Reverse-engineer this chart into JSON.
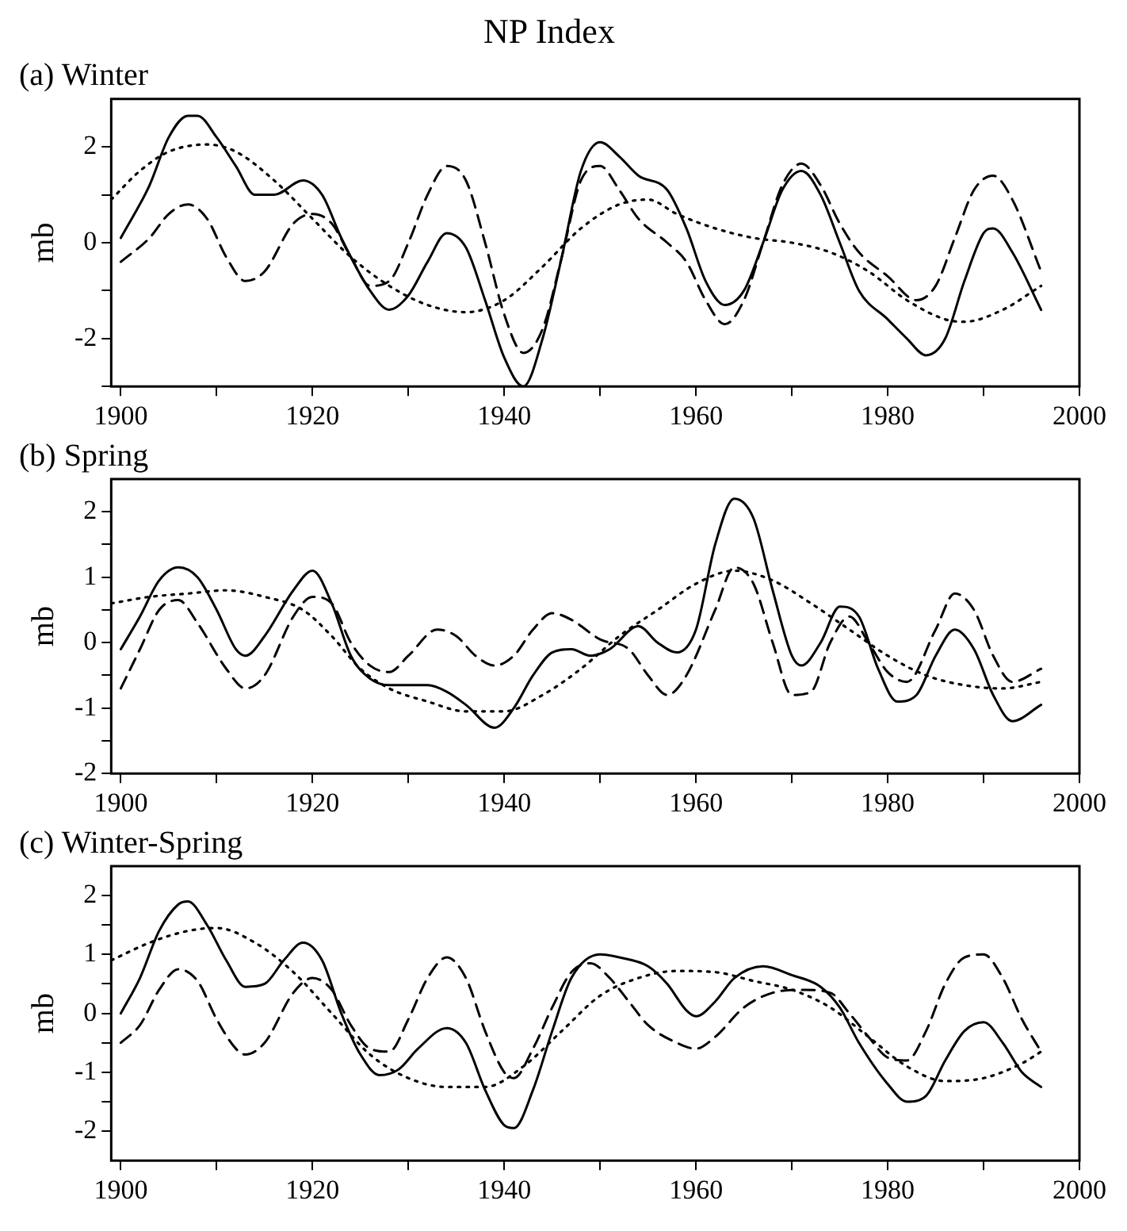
{
  "chart_data": [
    {
      "type": "line",
      "title": "NP Index",
      "subtitle": "(a) Winter",
      "ylabel": "mb",
      "xlim": [
        1899,
        2000
      ],
      "ylim": [
        -3,
        3
      ],
      "grid": false,
      "legend": false,
      "marker": "none",
      "xticks": [
        1900,
        {
          "value": 1910,
          "label": null
        },
        1920,
        {
          "value": 1930,
          "label": null
        },
        1940,
        {
          "value": 1950,
          "label": null
        },
        1960,
        {
          "value": 1970,
          "label": null
        },
        1980,
        {
          "value": 1990,
          "label": null
        },
        2000
      ],
      "yticks": [
        {
          "value": -3,
          "label": null
        },
        -2,
        {
          "value": -1,
          "label": null
        },
        0,
        {
          "value": 1,
          "label": null
        },
        2
      ],
      "series": [
        {
          "color": "#000000",
          "line_style": "solid",
          "x": [
            1900,
            1903,
            1905,
            1907,
            1908,
            1910,
            1912,
            1914,
            1916,
            1919,
            1921,
            1923,
            1926,
            1928,
            1930,
            1932,
            1934,
            1936,
            1938,
            1940,
            1942,
            1944,
            1946,
            1948,
            1950,
            1952,
            1954,
            1957,
            1959,
            1961,
            1963,
            1965,
            1967,
            1969,
            1971,
            1973,
            1975,
            1977,
            1980,
            1982,
            1984,
            1986,
            1988,
            1990,
            1991,
            1993,
            1996
          ],
          "values": [
            0.1,
            1.2,
            2.2,
            2.65,
            2.65,
            2.2,
            1.6,
            1.0,
            1.0,
            1.3,
            1.0,
            0.1,
            -1.0,
            -1.4,
            -1.1,
            -0.4,
            0.2,
            -0.1,
            -1.2,
            -2.4,
            -3.0,
            -2.0,
            -0.3,
            1.5,
            2.1,
            1.8,
            1.4,
            1.1,
            0.3,
            -0.8,
            -1.3,
            -1.0,
            0.0,
            1.1,
            1.5,
            1.0,
            0.0,
            -1.0,
            -1.6,
            -2.0,
            -2.35,
            -2.0,
            -0.8,
            0.2,
            0.3,
            -0.2,
            -1.4
          ]
        },
        {
          "color": "#000000",
          "line_style": "dashed",
          "x": [
            1900,
            1903,
            1905,
            1907,
            1909,
            1911,
            1913,
            1915,
            1918,
            1920,
            1922,
            1924,
            1926,
            1928,
            1930,
            1932,
            1934,
            1936,
            1938,
            1940,
            1942,
            1944,
            1946,
            1948,
            1950,
            1952,
            1954,
            1957,
            1959,
            1961,
            1963,
            1965,
            1967,
            1969,
            1971,
            1973,
            1975,
            1977,
            1980,
            1983,
            1985,
            1987,
            1989,
            1991,
            1993,
            1996
          ],
          "values": [
            -0.4,
            0.1,
            0.6,
            0.8,
            0.5,
            -0.3,
            -0.8,
            -0.6,
            0.4,
            0.6,
            0.4,
            -0.3,
            -0.9,
            -0.8,
            0.0,
            1.0,
            1.6,
            1.3,
            0.0,
            -1.5,
            -2.3,
            -1.8,
            -0.3,
            1.3,
            1.6,
            1.1,
            0.5,
            0.0,
            -0.4,
            -1.2,
            -1.7,
            -1.2,
            0.0,
            1.2,
            1.65,
            1.2,
            0.4,
            -0.2,
            -0.7,
            -1.2,
            -0.9,
            0.1,
            1.1,
            1.4,
            0.9,
            -0.6
          ]
        },
        {
          "color": "#000000",
          "line_style": "dotted",
          "x": [
            1899,
            1902,
            1905,
            1909,
            1912,
            1916,
            1920,
            1924,
            1928,
            1932,
            1936,
            1940,
            1944,
            1948,
            1952,
            1955,
            1958,
            1962,
            1966,
            1970,
            1974,
            1978,
            1982,
            1986,
            1988,
            1992,
            1996
          ],
          "values": [
            0.9,
            1.5,
            1.9,
            2.05,
            1.9,
            1.3,
            0.5,
            -0.3,
            -0.9,
            -1.3,
            -1.45,
            -1.2,
            -0.5,
            0.3,
            0.8,
            0.9,
            0.6,
            0.3,
            0.1,
            0.0,
            -0.2,
            -0.6,
            -1.2,
            -1.6,
            -1.65,
            -1.4,
            -0.9
          ]
        }
      ]
    },
    {
      "type": "line",
      "subtitle": "(b) Spring",
      "ylabel": "mb",
      "xlim": [
        1899,
        2000
      ],
      "ylim": [
        -2,
        2.5
      ],
      "grid": false,
      "legend": false,
      "marker": "none",
      "xticks": [
        1900,
        {
          "value": 1910,
          "label": null
        },
        1920,
        {
          "value": 1930,
          "label": null
        },
        1940,
        {
          "value": 1950,
          "label": null
        },
        1960,
        {
          "value": 1970,
          "label": null
        },
        1980,
        {
          "value": 1990,
          "label": null
        },
        2000
      ],
      "yticks": [
        -2,
        {
          "value": -1.5,
          "label": null
        },
        -1,
        {
          "value": -0.5,
          "label": null
        },
        0,
        {
          "value": 0.5,
          "label": null
        },
        1,
        {
          "value": 1.5,
          "label": null
        },
        2
      ],
      "series": [
        {
          "color": "#000000",
          "line_style": "solid",
          "x": [
            1900,
            1902,
            1904,
            1906,
            1908,
            1910,
            1912,
            1913,
            1915,
            1918,
            1920,
            1922,
            1924,
            1926,
            1928,
            1932,
            1934,
            1936,
            1939,
            1941,
            1943,
            1945,
            1947,
            1949,
            1951,
            1954,
            1956,
            1958,
            1960,
            1962,
            1964,
            1966,
            1968,
            1970,
            1971,
            1973,
            1975,
            1977,
            1979,
            1981,
            1983,
            1985,
            1987,
            1989,
            1991,
            1993,
            1996
          ],
          "values": [
            -0.1,
            0.4,
            0.95,
            1.15,
            1.0,
            0.5,
            -0.1,
            -0.2,
            0.1,
            0.8,
            1.1,
            0.6,
            -0.2,
            -0.55,
            -0.65,
            -0.65,
            -0.75,
            -0.95,
            -1.3,
            -1.0,
            -0.5,
            -0.15,
            -0.1,
            -0.2,
            -0.1,
            0.25,
            0.0,
            -0.15,
            0.2,
            1.5,
            2.2,
            1.9,
            0.8,
            -0.2,
            -0.35,
            0.0,
            0.55,
            0.4,
            -0.4,
            -0.9,
            -0.8,
            -0.2,
            0.2,
            -0.1,
            -0.8,
            -1.2,
            -0.95
          ]
        },
        {
          "color": "#000000",
          "line_style": "dashed",
          "x": [
            1900,
            1902,
            1904,
            1906,
            1908,
            1911,
            1913,
            1915,
            1918,
            1920,
            1922,
            1924,
            1926,
            1928,
            1930,
            1933,
            1935,
            1937,
            1939,
            1941,
            1943,
            1945,
            1947,
            1950,
            1953,
            1955,
            1957,
            1959,
            1962,
            1964,
            1966,
            1968,
            1970,
            1972,
            1974,
            1976,
            1978,
            1980,
            1982,
            1985,
            1987,
            1989,
            1991,
            1993,
            1996
          ],
          "values": [
            -0.7,
            -0.1,
            0.5,
            0.65,
            0.3,
            -0.4,
            -0.7,
            -0.5,
            0.4,
            0.7,
            0.6,
            0.0,
            -0.35,
            -0.45,
            -0.2,
            0.2,
            0.1,
            -0.2,
            -0.35,
            -0.2,
            0.2,
            0.45,
            0.35,
            0.05,
            -0.1,
            -0.5,
            -0.8,
            -0.5,
            0.5,
            1.15,
            0.9,
            0.0,
            -0.8,
            -0.75,
            0.0,
            0.4,
            0.0,
            -0.45,
            -0.6,
            0.2,
            0.75,
            0.5,
            -0.2,
            -0.6,
            -0.4
          ]
        },
        {
          "color": "#000000",
          "line_style": "dotted",
          "x": [
            1899,
            1903,
            1907,
            1911,
            1915,
            1919,
            1922,
            1925,
            1928,
            1932,
            1936,
            1940,
            1944,
            1948,
            1952,
            1956,
            1960,
            1964,
            1968,
            1972,
            1976,
            1980,
            1984,
            1988,
            1992,
            1996
          ],
          "values": [
            0.6,
            0.7,
            0.75,
            0.8,
            0.7,
            0.5,
            0.1,
            -0.4,
            -0.7,
            -0.9,
            -1.05,
            -1.05,
            -0.8,
            -0.4,
            0.1,
            0.5,
            0.9,
            1.1,
            0.95,
            0.6,
            0.2,
            -0.2,
            -0.5,
            -0.65,
            -0.7,
            -0.6
          ]
        }
      ]
    },
    {
      "type": "line",
      "subtitle": "(c) Winter-Spring",
      "ylabel": "mb",
      "xlim": [
        1899,
        2000
      ],
      "ylim": [
        -2.5,
        2.5
      ],
      "grid": false,
      "legend": false,
      "marker": "none",
      "xticks": [
        1900,
        {
          "value": 1910,
          "label": null
        },
        1920,
        {
          "value": 1930,
          "label": null
        },
        1940,
        {
          "value": 1950,
          "label": null
        },
        1960,
        {
          "value": 1970,
          "label": null
        },
        1980,
        {
          "value": 1990,
          "label": null
        },
        2000
      ],
      "yticks": [
        -2,
        {
          "value": -1.5,
          "label": null
        },
        -1,
        {
          "value": -0.5,
          "label": null
        },
        0,
        {
          "value": 0.5,
          "label": null
        },
        1,
        {
          "value": 1.5,
          "label": null
        },
        2
      ],
      "series": [
        {
          "color": "#000000",
          "line_style": "solid",
          "x": [
            1900,
            1902,
            1904,
            1906,
            1907,
            1909,
            1911,
            1913,
            1915,
            1917,
            1919,
            1921,
            1923,
            1925,
            1927,
            1929,
            1931,
            1934,
            1936,
            1938,
            1940,
            1941,
            1943,
            1945,
            1947,
            1950,
            1952,
            1955,
            1957,
            1959,
            1960,
            1962,
            1964,
            1967,
            1970,
            1973,
            1975,
            1977,
            1980,
            1982,
            1984,
            1986,
            1988,
            1990,
            1992,
            1994,
            1996
          ],
          "values": [
            0.0,
            0.6,
            1.4,
            1.85,
            1.9,
            1.5,
            0.9,
            0.45,
            0.5,
            0.9,
            1.2,
            0.9,
            0.0,
            -0.7,
            -1.05,
            -0.95,
            -0.6,
            -0.25,
            -0.5,
            -1.3,
            -1.9,
            -1.95,
            -1.3,
            -0.3,
            0.6,
            1.0,
            0.95,
            0.8,
            0.5,
            0.05,
            -0.05,
            0.2,
            0.6,
            0.8,
            0.65,
            0.45,
            0.1,
            -0.5,
            -1.2,
            -1.5,
            -1.4,
            -0.8,
            -0.3,
            -0.15,
            -0.5,
            -1.0,
            -1.25
          ]
        },
        {
          "color": "#000000",
          "line_style": "dashed",
          "x": [
            1900,
            1902,
            1904,
            1906,
            1908,
            1910,
            1912,
            1913,
            1915,
            1918,
            1920,
            1922,
            1924,
            1926,
            1928,
            1930,
            1932,
            1934,
            1936,
            1938,
            1940,
            1941,
            1943,
            1945,
            1947,
            1949,
            1951,
            1953,
            1955,
            1958,
            1960,
            1962,
            1965,
            1968,
            1971,
            1974,
            1976,
            1978,
            1980,
            1982,
            1984,
            1986,
            1988,
            1990,
            1992,
            1994,
            1996
          ],
          "values": [
            -0.5,
            -0.2,
            0.4,
            0.75,
            0.55,
            -0.1,
            -0.6,
            -0.7,
            -0.5,
            0.35,
            0.6,
            0.4,
            -0.2,
            -0.6,
            -0.65,
            -0.1,
            0.6,
            0.95,
            0.6,
            -0.3,
            -1.0,
            -1.1,
            -0.6,
            0.1,
            0.7,
            0.85,
            0.6,
            0.2,
            -0.2,
            -0.5,
            -0.6,
            -0.4,
            0.1,
            0.35,
            0.4,
            0.35,
            0.0,
            -0.4,
            -0.75,
            -0.8,
            -0.3,
            0.5,
            0.95,
            1.0,
            0.6,
            -0.1,
            -0.65
          ]
        },
        {
          "color": "#000000",
          "line_style": "dotted",
          "x": [
            1899,
            1903,
            1907,
            1910,
            1914,
            1918,
            1922,
            1926,
            1930,
            1934,
            1938,
            1942,
            1946,
            1950,
            1954,
            1958,
            1962,
            1966,
            1970,
            1974,
            1978,
            1982,
            1986,
            1990,
            1994,
            1996
          ],
          "values": [
            0.9,
            1.2,
            1.4,
            1.45,
            1.2,
            0.7,
            0.0,
            -0.7,
            -1.1,
            -1.25,
            -1.25,
            -0.9,
            -0.3,
            0.3,
            0.6,
            0.72,
            0.7,
            0.55,
            0.4,
            0.1,
            -0.4,
            -0.9,
            -1.15,
            -1.1,
            -0.85,
            -0.65
          ]
        }
      ]
    }
  ]
}
